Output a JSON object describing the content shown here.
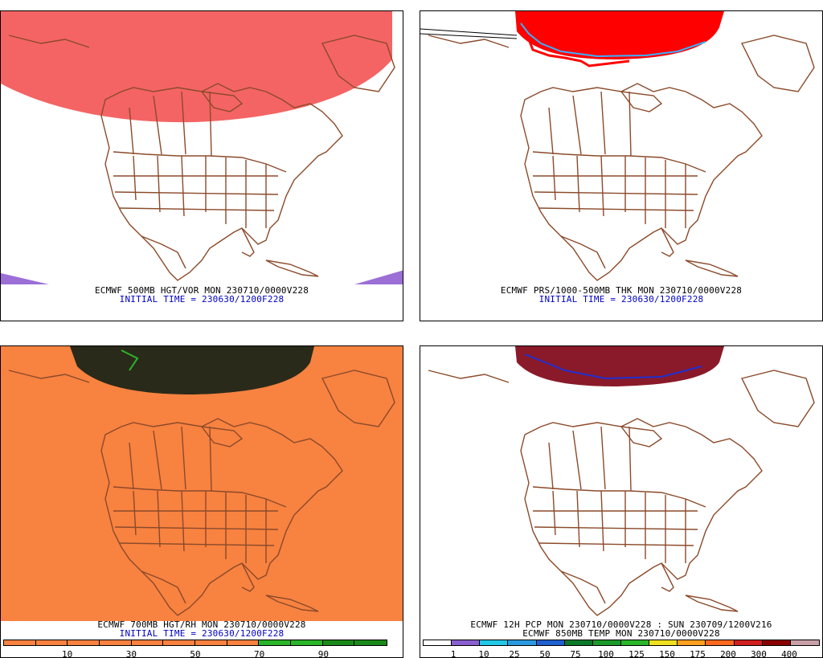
{
  "panels": [
    {
      "id": "tl",
      "title": "ECMWF 500MB HGT/VOR MON 230710/0000V228",
      "subtitle": "INITIAL TIME = 230630/1200F228",
      "fill": "#f46464",
      "corner_fill": "#9b6fd6"
    },
    {
      "id": "tr",
      "title": "ECMWF PRS/1000-500MB THK MON 230710/0000V228",
      "subtitle": "INITIAL TIME = 230630/1200F228",
      "fill": "#ff0000",
      "accent": "#3ab0ff"
    },
    {
      "id": "bl",
      "title": "ECMWF 700MB HGT/RH MON 230710/0000V228",
      "subtitle": "INITIAL TIME = 230630/1200F228",
      "fill": "#f88240",
      "colorbar": {
        "colors": [
          "#f88240",
          "#f88240",
          "#f88240",
          "#f88240",
          "#f88240",
          "#f88240",
          "#f88240",
          "#f88240",
          "#2ab52a",
          "#2ab52a",
          "#1a8a1a",
          "#1a8a1a"
        ],
        "labels": [
          "10",
          "30",
          "50",
          "70",
          "90"
        ]
      }
    },
    {
      "id": "br",
      "title": "ECMWF 12H PCP MON 230710/0000V228 : SUN 230709/1200V216",
      "subtitle": "ECMWF 850MB TEMP MON 230710/0000V228",
      "colorbar": {
        "colors": [
          "#ffffff",
          "#8a5fd0",
          "#22c8e8",
          "#2a9ae0",
          "#1f5fd0",
          "#0a7a2a",
          "#1a9a2a",
          "#2ab52a",
          "#f0e020",
          "#ffa020",
          "#ff6a20",
          "#d02020",
          "#8a0000",
          "#c8a0a8"
        ],
        "labels": [
          "1",
          "10",
          "25",
          "50",
          "75",
          "100",
          "125",
          "150",
          "175",
          "200",
          "300",
          "400"
        ]
      }
    }
  ],
  "colors": {
    "border": "#8b4a2a",
    "frame": "#000000"
  }
}
